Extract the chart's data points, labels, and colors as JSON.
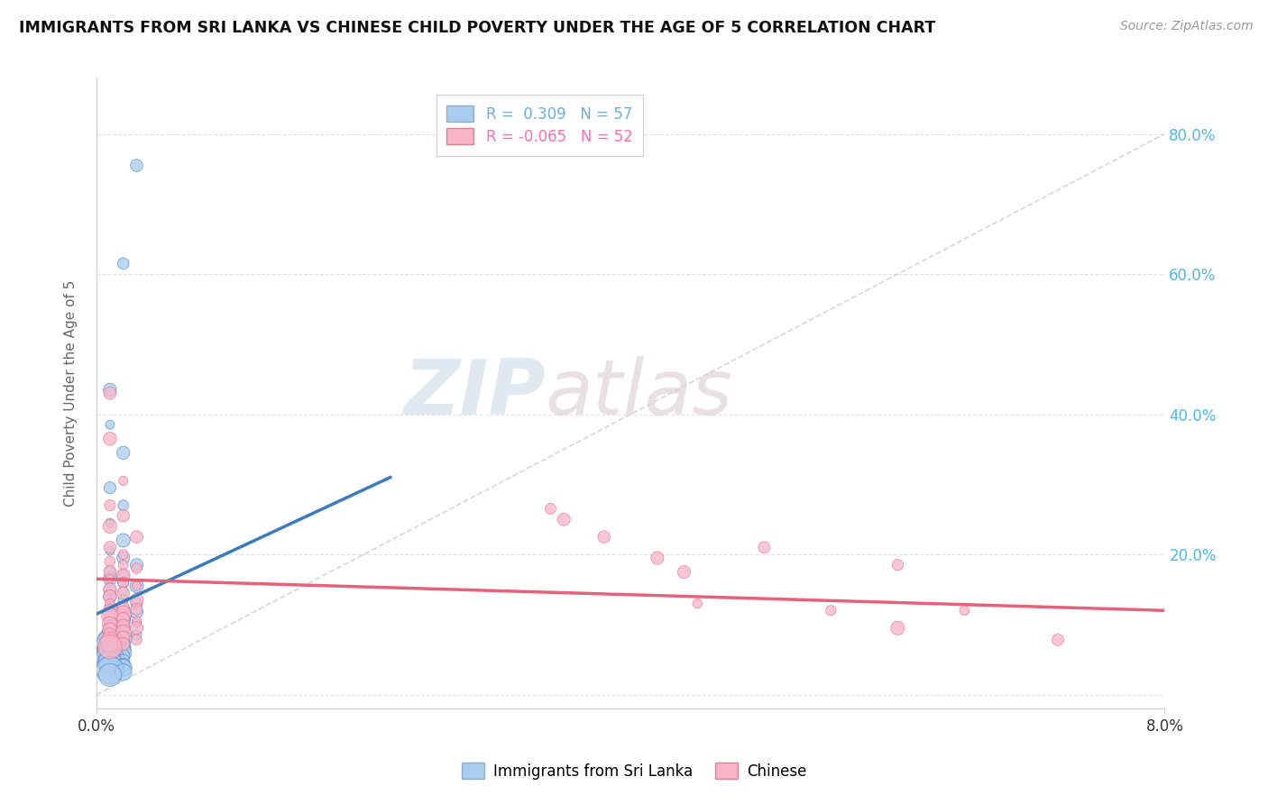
{
  "title": "IMMIGRANTS FROM SRI LANKA VS CHINESE CHILD POVERTY UNDER THE AGE OF 5 CORRELATION CHART",
  "source": "Source: ZipAtlas.com",
  "ylabel": "Child Poverty Under the Age of 5",
  "xmin": 0.0,
  "xmax": 0.08,
  "ymin": -0.02,
  "ymax": 0.88,
  "ytick_vals": [
    0.0,
    0.2,
    0.4,
    0.6,
    0.8
  ],
  "legend_entries": [
    {
      "label": "R =  0.309   N = 57",
      "color": "#6baed6"
    },
    {
      "label": "R = -0.065   N = 52",
      "color": "#fb6eb0"
    }
  ],
  "sri_lanka_scatter": [
    [
      0.003,
      0.755
    ],
    [
      0.002,
      0.615
    ],
    [
      0.001,
      0.435
    ],
    [
      0.001,
      0.385
    ],
    [
      0.002,
      0.345
    ],
    [
      0.001,
      0.295
    ],
    [
      0.002,
      0.27
    ],
    [
      0.001,
      0.245
    ],
    [
      0.002,
      0.22
    ],
    [
      0.001,
      0.205
    ],
    [
      0.002,
      0.195
    ],
    [
      0.003,
      0.185
    ],
    [
      0.001,
      0.175
    ],
    [
      0.002,
      0.17
    ],
    [
      0.001,
      0.165
    ],
    [
      0.002,
      0.16
    ],
    [
      0.003,
      0.155
    ],
    [
      0.001,
      0.15
    ],
    [
      0.002,
      0.148
    ],
    [
      0.001,
      0.14
    ],
    [
      0.002,
      0.135
    ],
    [
      0.003,
      0.13
    ],
    [
      0.001,
      0.125
    ],
    [
      0.002,
      0.122
    ],
    [
      0.003,
      0.118
    ],
    [
      0.001,
      0.115
    ],
    [
      0.002,
      0.112
    ],
    [
      0.001,
      0.108
    ],
    [
      0.002,
      0.105
    ],
    [
      0.003,
      0.102
    ],
    [
      0.001,
      0.098
    ],
    [
      0.002,
      0.095
    ],
    [
      0.001,
      0.09
    ],
    [
      0.002,
      0.088
    ],
    [
      0.003,
      0.085
    ],
    [
      0.001,
      0.082
    ],
    [
      0.002,
      0.08
    ],
    [
      0.001,
      0.078
    ],
    [
      0.002,
      0.075
    ],
    [
      0.001,
      0.072
    ],
    [
      0.002,
      0.07
    ],
    [
      0.001,
      0.068
    ],
    [
      0.002,
      0.065
    ],
    [
      0.001,
      0.062
    ],
    [
      0.002,
      0.06
    ],
    [
      0.001,
      0.058
    ],
    [
      0.002,
      0.055
    ],
    [
      0.001,
      0.052
    ],
    [
      0.001,
      0.05
    ],
    [
      0.002,
      0.048
    ],
    [
      0.001,
      0.045
    ],
    [
      0.002,
      0.042
    ],
    [
      0.001,
      0.04
    ],
    [
      0.002,
      0.038
    ],
    [
      0.001,
      0.035
    ],
    [
      0.002,
      0.032
    ],
    [
      0.001,
      0.028
    ]
  ],
  "chinese_scatter": [
    [
      0.001,
      0.43
    ],
    [
      0.001,
      0.365
    ],
    [
      0.002,
      0.305
    ],
    [
      0.001,
      0.27
    ],
    [
      0.002,
      0.255
    ],
    [
      0.001,
      0.24
    ],
    [
      0.003,
      0.225
    ],
    [
      0.001,
      0.21
    ],
    [
      0.002,
      0.2
    ],
    [
      0.001,
      0.19
    ],
    [
      0.002,
      0.185
    ],
    [
      0.003,
      0.18
    ],
    [
      0.001,
      0.175
    ],
    [
      0.002,
      0.17
    ],
    [
      0.001,
      0.165
    ],
    [
      0.002,
      0.16
    ],
    [
      0.003,
      0.155
    ],
    [
      0.001,
      0.15
    ],
    [
      0.002,
      0.145
    ],
    [
      0.001,
      0.14
    ],
    [
      0.003,
      0.135
    ],
    [
      0.001,
      0.13
    ],
    [
      0.002,
      0.125
    ],
    [
      0.003,
      0.122
    ],
    [
      0.001,
      0.118
    ],
    [
      0.002,
      0.115
    ],
    [
      0.001,
      0.112
    ],
    [
      0.002,
      0.108
    ],
    [
      0.003,
      0.105
    ],
    [
      0.001,
      0.1
    ],
    [
      0.002,
      0.098
    ],
    [
      0.003,
      0.095
    ],
    [
      0.001,
      0.092
    ],
    [
      0.002,
      0.088
    ],
    [
      0.001,
      0.085
    ],
    [
      0.002,
      0.082
    ],
    [
      0.003,
      0.078
    ],
    [
      0.001,
      0.075
    ],
    [
      0.002,
      0.072
    ],
    [
      0.001,
      0.068
    ],
    [
      0.034,
      0.265
    ],
    [
      0.035,
      0.25
    ],
    [
      0.038,
      0.225
    ],
    [
      0.042,
      0.195
    ],
    [
      0.044,
      0.175
    ],
    [
      0.05,
      0.21
    ],
    [
      0.055,
      0.12
    ],
    [
      0.06,
      0.095
    ],
    [
      0.045,
      0.13
    ],
    [
      0.06,
      0.185
    ],
    [
      0.065,
      0.12
    ],
    [
      0.072,
      0.078
    ]
  ],
  "sri_lanka_trend_x": [
    0.0,
    0.022
  ],
  "sri_lanka_trend_y": [
    0.115,
    0.31
  ],
  "chinese_trend_x": [
    0.0,
    0.08
  ],
  "chinese_trend_y": [
    0.165,
    0.12
  ],
  "trend_color_sri": "#3a7abf",
  "trend_color_chinese": "#e8607a",
  "scatter_color_sri": "#aaccee",
  "scatter_color_chinese": "#f8b4c8",
  "diagonal_color": "#cccccc",
  "background_color": "#ffffff",
  "watermark_zip": "ZIP",
  "watermark_atlas": "atlas",
  "grid_color": "#e0e0e0"
}
